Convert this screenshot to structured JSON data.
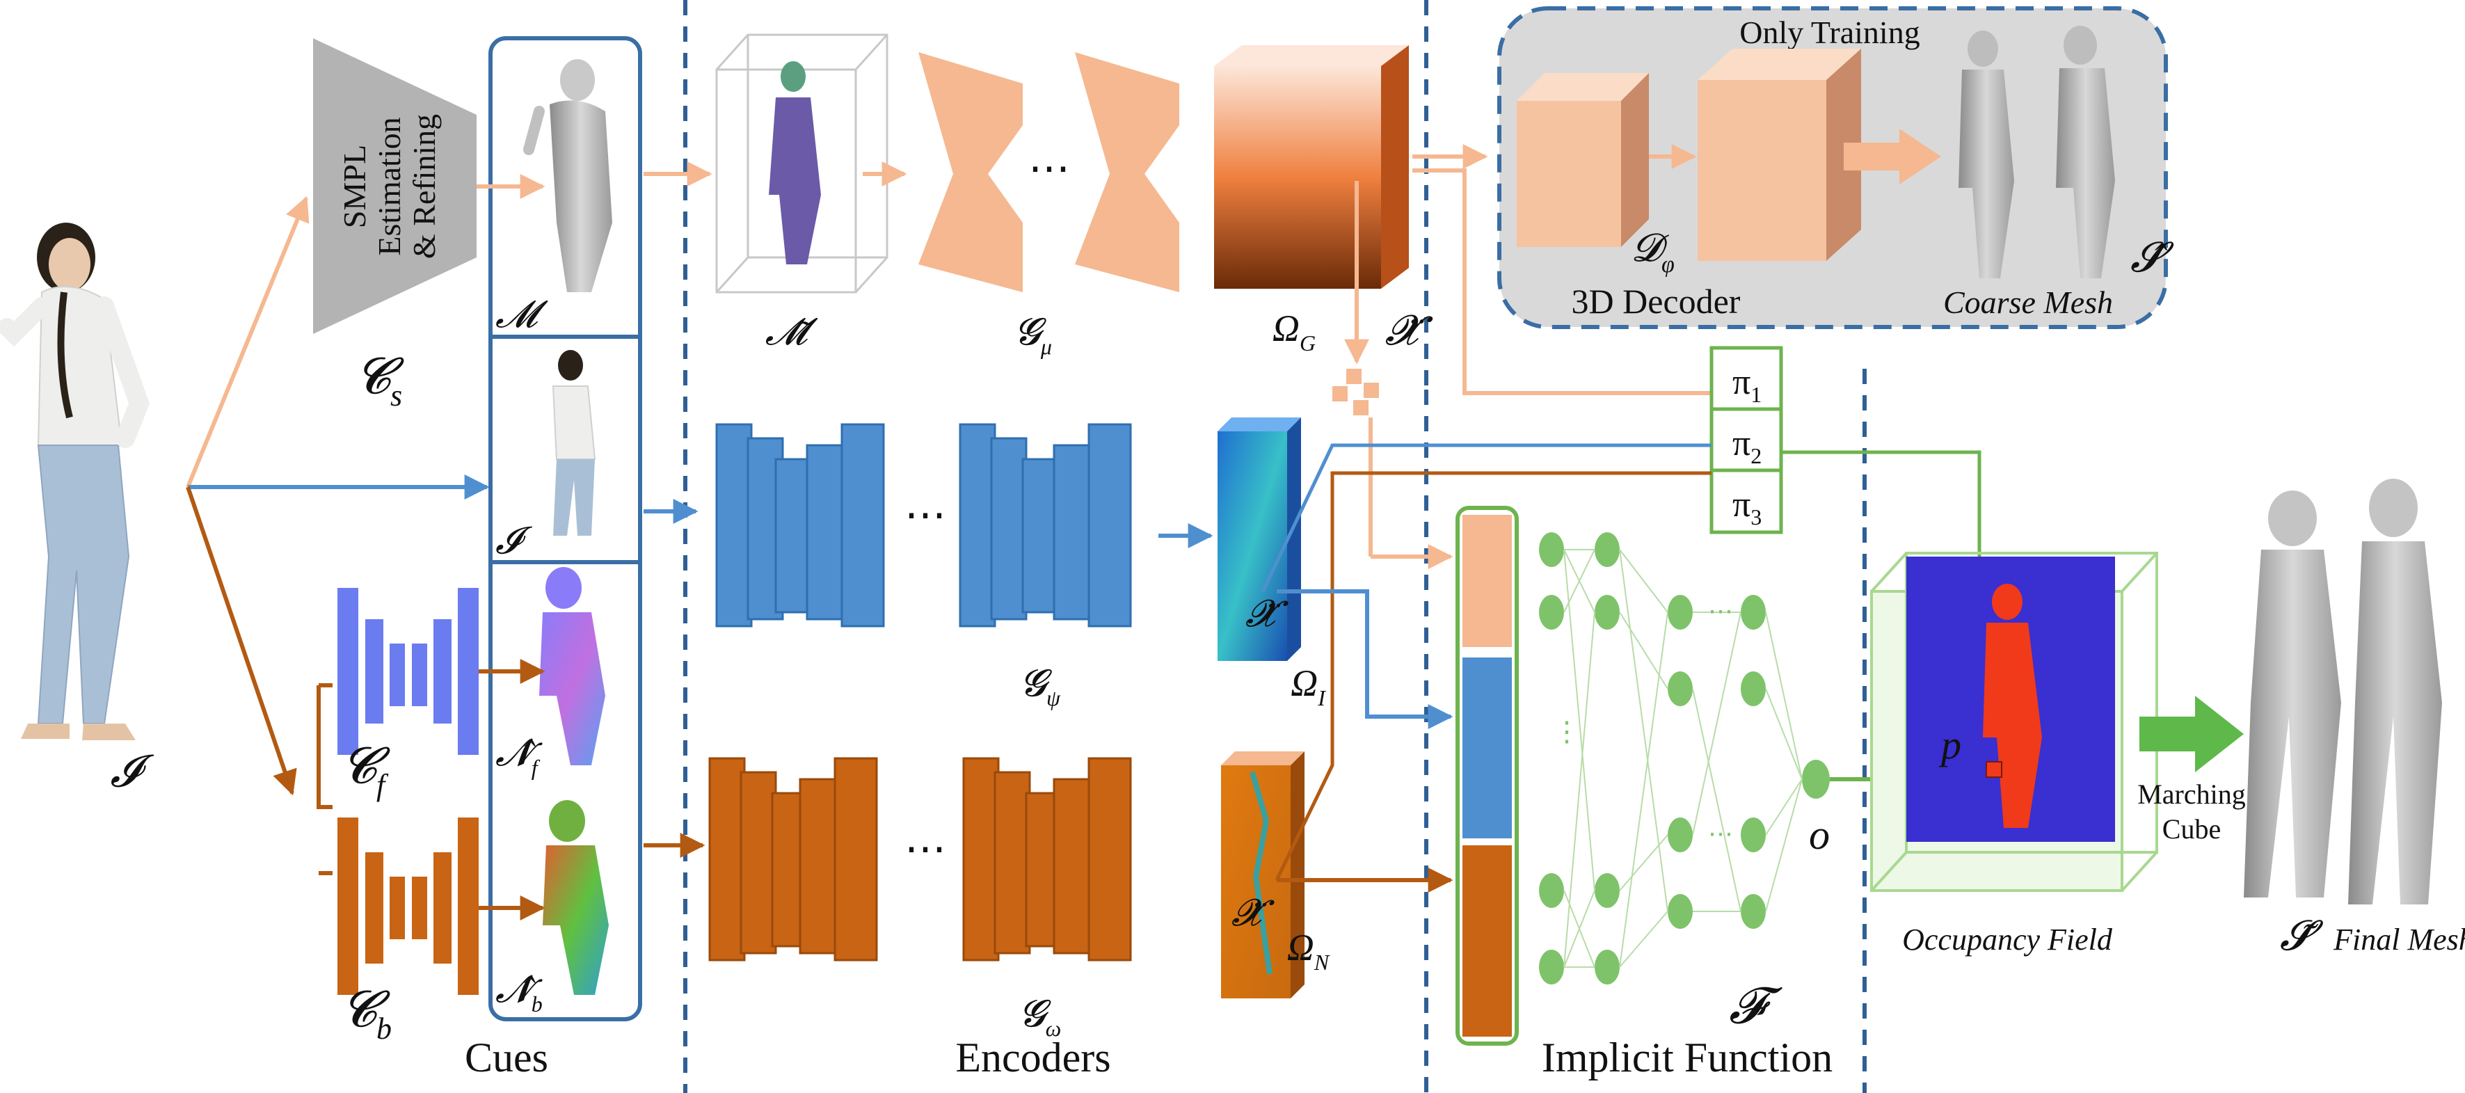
{
  "colors": {
    "orange_light": "#f5b890",
    "orange_dark": "#c05a10",
    "orange_mid": "#e07a28",
    "blue_mid": "#4f8fd0",
    "blue_dark": "#2f6fb0",
    "green_mlp": "#7ec36a",
    "green_line": "#6db34e",
    "periwinkle": "#6a7cf0",
    "panel_border": "#3a6ea5",
    "divider": "#2f5f95",
    "gray_box": "#d9d9d9",
    "occupancy_blue": "#3a2fd0",
    "occupancy_red": "#f03a1a"
  },
  "labels": {
    "input_image": "𝓘",
    "smpl_block_line1": "SMPL",
    "smpl_block_line2": "Estimation",
    "smpl_block_line3": "& Refining",
    "smpl_estimator": "𝓒",
    "smpl_estimator_sub": "s",
    "cue_smpl_mesh": "𝓜",
    "cue_image": "𝓘",
    "cue_front_normal": "𝓝̂",
    "cue_front_normal_sub": "f",
    "cue_back_normal": "𝓝̂",
    "cue_back_normal_sub": "b",
    "front_normal_net": "𝓒",
    "front_normal_net_sub": "f",
    "back_normal_net": "𝓒",
    "back_normal_net_sub": "b",
    "cues_title": "Cues",
    "voxelized_mesh": "𝓜̃",
    "geometry_encoder": "𝓖",
    "geometry_encoder_sub": "μ",
    "image_encoder": "𝓖",
    "image_encoder_sub": "ψ",
    "normal_encoder": "𝓖",
    "normal_encoder_sub": "ω",
    "geometry_feature": "Ω",
    "geometry_feature_sub": "G",
    "image_feature": "Ω",
    "image_feature_sub": "I",
    "normal_feature": "Ω",
    "normal_feature_sub": "N",
    "query_point_proj": "𝓧̈",
    "encoders_title": "Encoders",
    "only_training": "Only Training",
    "decoder_symbol": "𝓓",
    "decoder_symbol_sub": "φ",
    "decoder_caption": "3D Decoder",
    "coarse_mesh_caption": "Coarse Mesh",
    "coarse_mesh_symbol": "𝓢̂",
    "pi_1": "π",
    "pi_1_sub": "1",
    "pi_2": "π",
    "pi_2_sub": "2",
    "pi_3": "π",
    "pi_3_sub": "3",
    "implicit_function_symbol": "𝓕",
    "implicit_function_title": "Implicit Function",
    "occupancy_output": "o",
    "query_point": "p",
    "occupancy_field_caption": "Occupancy Field",
    "marching_cube_line1": "Marching",
    "marching_cube_line2": "Cube",
    "final_mesh_symbol": "𝓢̃",
    "final_mesh_caption": "Final Mesh"
  }
}
